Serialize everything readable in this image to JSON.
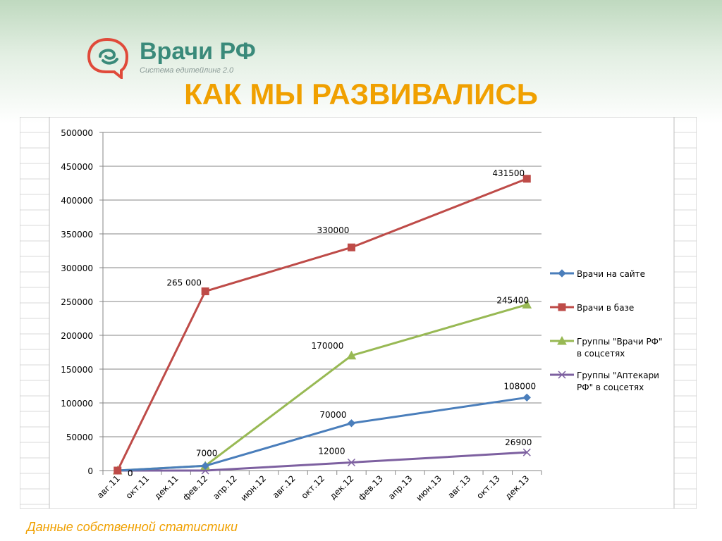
{
  "header": {
    "logo_text": "Врачи РФ",
    "logo_subtitle": "Система едитейлинг 2.0",
    "title": "КАК МЫ РАЗВИВАЛИСЬ"
  },
  "footer": {
    "note": "Данные собственной статистики"
  },
  "colors": {
    "accent": "#f0a000",
    "logo": "#3a8a7a",
    "logo_icon": "#e04a3a"
  },
  "chart_data": {
    "type": "line",
    "title": "",
    "xlabel": "",
    "ylabel": "",
    "ylim": [
      0,
      500000
    ],
    "y_ticks": [
      "0",
      "50000",
      "100000",
      "150000",
      "200000",
      "250000",
      "300000",
      "350000",
      "400000",
      "450000",
      "500000"
    ],
    "categories": [
      "авг.11",
      "окт.11",
      "дек.11",
      "фев.12",
      "апр.12",
      "июн.12",
      "авг.12",
      "окт.12",
      "дек.12",
      "фев.13",
      "апр.13",
      "июн.13",
      "авг.13",
      "окт.13",
      "дек.13"
    ],
    "grid": true,
    "legend_position": "right",
    "series": [
      {
        "name": "Врачи на сайте",
        "color": "#4a7ebb",
        "marker": "diamond",
        "points": [
          {
            "x": "авг.11",
            "y": 0,
            "label": ""
          },
          {
            "x": "фев.12",
            "y": 7000,
            "label": "7000"
          },
          {
            "x": "дек.12",
            "y": 70000,
            "label": "70000"
          },
          {
            "x": "дек.13",
            "y": 108000,
            "label": "108000"
          }
        ]
      },
      {
        "name": "Врачи в базе",
        "color": "#be4b48",
        "marker": "square",
        "points": [
          {
            "x": "авг.11",
            "y": 0,
            "label": "0"
          },
          {
            "x": "фев.12",
            "y": 265000,
            "label": "265 000"
          },
          {
            "x": "дек.12",
            "y": 330000,
            "label": "330000"
          },
          {
            "x": "дек.13",
            "y": 431500,
            "label": "431500"
          }
        ]
      },
      {
        "name": "Группы \"Врачи РФ\" в соцсетях",
        "legend_lines": [
          "Группы \"Врачи РФ\"",
          "в соцсетях"
        ],
        "color": "#98b954",
        "marker": "triangle",
        "points": [
          {
            "x": "авг.11",
            "y": 0,
            "label": ""
          },
          {
            "x": "фев.12",
            "y": 7000,
            "label": ""
          },
          {
            "x": "дек.12",
            "y": 170000,
            "label": "170000"
          },
          {
            "x": "дек.13",
            "y": 245400,
            "label": "245400"
          }
        ]
      },
      {
        "name": "Группы \"Аптекари РФ\" в соцсетях",
        "legend_lines": [
          "Группы \"Аптекари",
          "РФ\" в соцсетях"
        ],
        "color": "#7d60a0",
        "marker": "x",
        "points": [
          {
            "x": "авг.11",
            "y": 0,
            "label": ""
          },
          {
            "x": "фев.12",
            "y": 0,
            "label": ""
          },
          {
            "x": "дек.12",
            "y": 12000,
            "label": "12000"
          },
          {
            "x": "дек.13",
            "y": 26900,
            "label": "26900"
          }
        ]
      }
    ]
  }
}
